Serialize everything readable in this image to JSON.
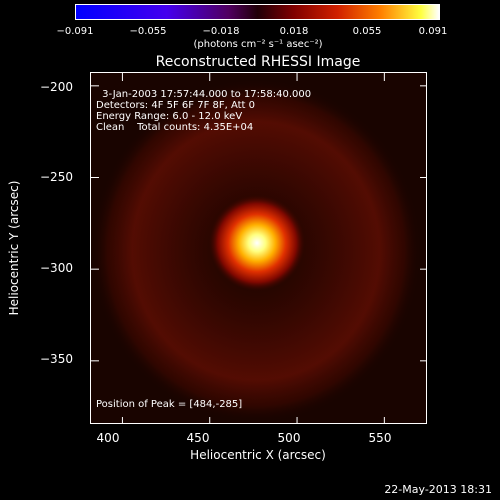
{
  "colorbar": {
    "ticks": [
      "−0.091",
      "−0.055",
      "−0.018",
      "0.018",
      "0.055",
      "0.091"
    ],
    "unit": "(photons cm⁻² s⁻¹ asec⁻²)"
  },
  "chart_data": {
    "type": "heatmap",
    "title": "Reconstructed RHESSI Image",
    "xlabel": "Heliocentric X (arcsec)",
    "ylabel": "Heliocentric Y (arcsec)",
    "xlim": [
      382,
      575
    ],
    "ylim": [
      -385,
      -193
    ],
    "xticks": [
      400,
      450,
      500,
      550
    ],
    "yticks": [
      -200,
      -250,
      -300,
      -350
    ],
    "peak": {
      "x": 484,
      "y": -285
    },
    "info_lines": [
      " 3-Jan-2003 17:57:44.000 to 17:58:40.000",
      "Detectors: 4F 5F 6F 7F 8F, Att 0",
      "Energy Range: 6.0 - 12.0 keV",
      "Clean    Total counts: 4.35E+04"
    ],
    "peak_label": "Position of Peak = [484,-285]"
  },
  "footer": "22-May-2013 18:31"
}
